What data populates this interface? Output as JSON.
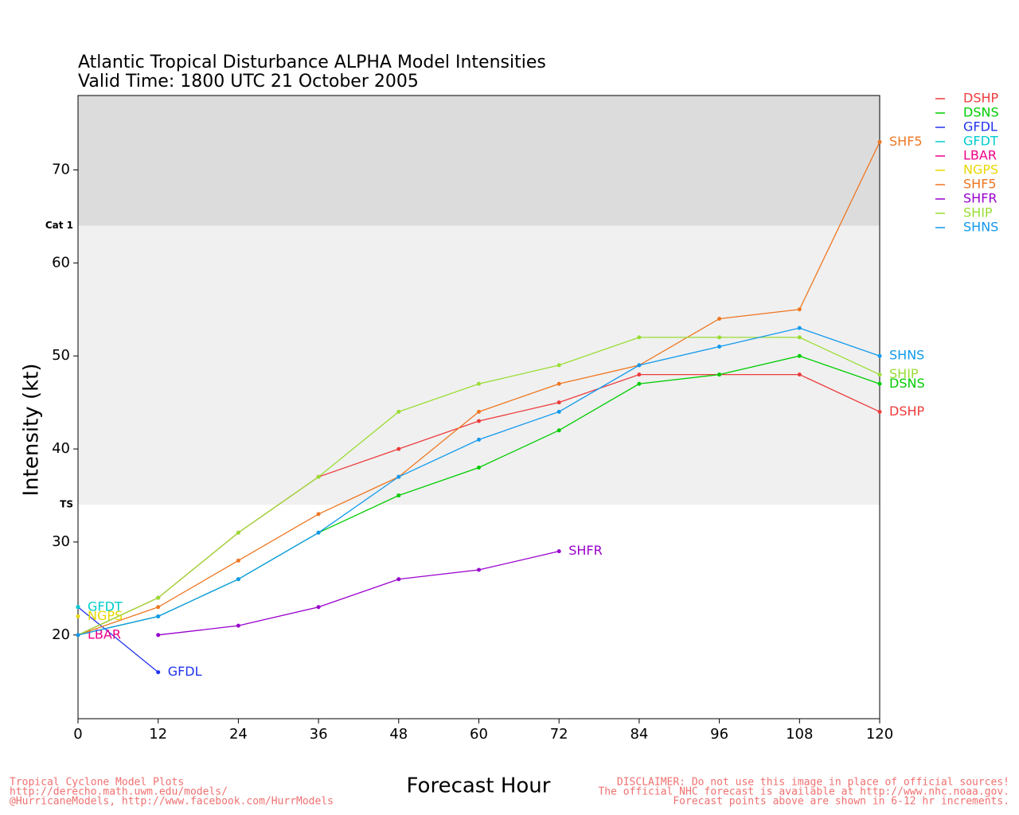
{
  "chart_data": {
    "type": "line",
    "title": "Atlantic Tropical Disturbance ALPHA Model Intensities",
    "subtitle": "Valid Time: 1800 UTC 21 October 2005",
    "x_label": "Forecast Hour",
    "y_label": "Intensity (kt)",
    "x": [
      0,
      12,
      24,
      36,
      48,
      60,
      72,
      84,
      96,
      108,
      120
    ],
    "xlim": [
      0,
      120
    ],
    "xticks": [
      0,
      12,
      24,
      36,
      48,
      60,
      72,
      84,
      96,
      108,
      120
    ],
    "ylim": [
      11,
      78
    ],
    "yticks": [
      20,
      30,
      40,
      50,
      60,
      70
    ],
    "thresholds": [
      {
        "value": 34,
        "label": "TS",
        "color": "#f0f0f0"
      },
      {
        "value": 64,
        "label": "Cat 1",
        "color": "#dcdcdc"
      }
    ],
    "series": [
      {
        "name": "DSHP",
        "color": "#ee3b3b",
        "values": [
          20,
          24,
          31,
          37,
          40,
          43,
          45,
          48,
          48,
          48,
          44
        ]
      },
      {
        "name": "DSNS",
        "color": "#00cc00",
        "values": [
          20,
          22,
          26,
          31,
          35,
          38,
          42,
          47,
          48,
          50,
          47
        ]
      },
      {
        "name": "GFDL",
        "color": "#2233ee",
        "values": [
          23,
          16,
          null,
          null,
          null,
          null,
          null,
          null,
          null,
          null,
          null
        ]
      },
      {
        "name": "GFDT",
        "color": "#00cccc",
        "values": [
          23,
          null,
          null,
          null,
          null,
          null,
          null,
          null,
          null,
          null,
          null
        ]
      },
      {
        "name": "LBAR",
        "color": "#ee0088",
        "values": [
          20,
          null,
          null,
          null,
          null,
          null,
          null,
          null,
          null,
          null,
          null
        ]
      },
      {
        "name": "NGPS",
        "color": "#e8d800",
        "values": [
          22,
          null,
          null,
          null,
          null,
          null,
          null,
          null,
          null,
          null,
          null
        ]
      },
      {
        "name": "SHF5",
        "color": "#ee7722",
        "values": [
          20,
          23,
          28,
          33,
          37,
          44,
          47,
          49,
          54,
          55,
          73
        ]
      },
      {
        "name": "SHFR",
        "color": "#9900cc",
        "values": [
          null,
          20,
          21,
          23,
          26,
          27,
          29,
          null,
          null,
          null,
          null
        ]
      },
      {
        "name": "SHIP",
        "color": "#99dd33",
        "values": [
          20,
          24,
          31,
          37,
          44,
          47,
          49,
          52,
          52,
          52,
          48
        ]
      },
      {
        "name": "SHNS",
        "color": "#1199ee",
        "values": [
          20,
          22,
          26,
          31,
          37,
          41,
          44,
          49,
          51,
          53,
          50
        ]
      }
    ],
    "footer_left": [
      "Tropical Cyclone Model Plots",
      "http://derecho.math.uwm.edu/models/",
      "@HurricaneModels, http://www.facebook.com/HurrModels"
    ],
    "footer_right": [
      "DISCLAIMER: Do not use this image in place of official sources!",
      "The official NHC forecast is available at http://www.nhc.noaa.gov.",
      "Forecast points above are shown in 6-12 hr increments."
    ]
  }
}
